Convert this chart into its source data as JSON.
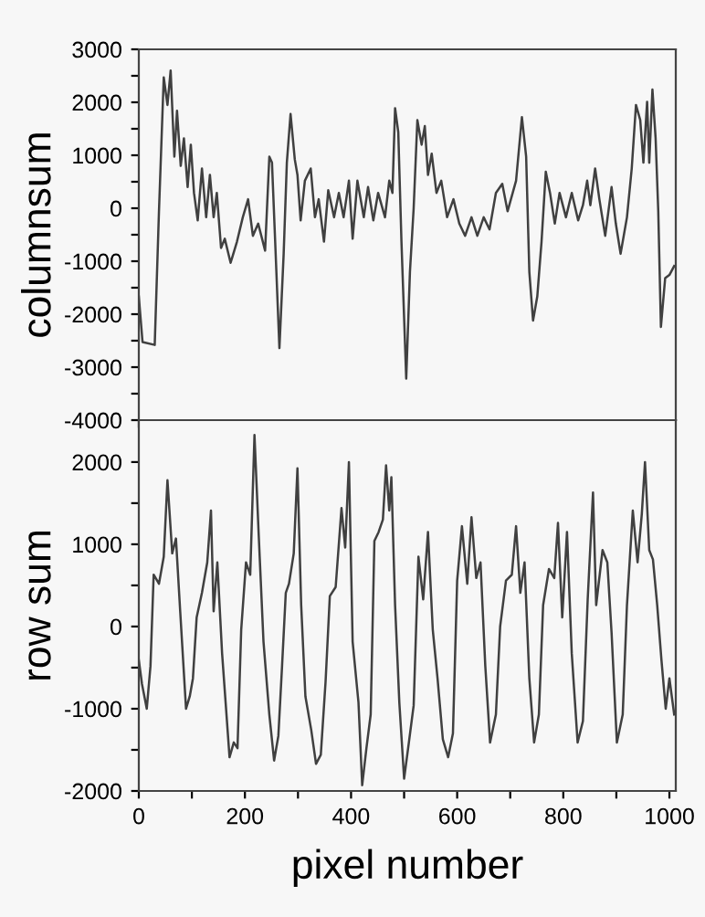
{
  "chart_data": [
    {
      "type": "line",
      "ylabel": "columnsum",
      "xlim": [
        0,
        1012
      ],
      "ylim": [
        -4000,
        3000
      ],
      "xticks": [
        {
          "value": 0,
          "label": null
        },
        {
          "value": 100,
          "label": null
        },
        {
          "value": 200,
          "label": null
        },
        {
          "value": 300,
          "label": null
        },
        {
          "value": 400,
          "label": null
        },
        {
          "value": 500,
          "label": null
        },
        {
          "value": 600,
          "label": null
        },
        {
          "value": 700,
          "label": null
        },
        {
          "value": 800,
          "label": null
        },
        {
          "value": 900,
          "label": null
        },
        {
          "value": 1000,
          "label": null
        }
      ],
      "yticks": [
        -4000,
        {
          "value": -3500,
          "label": null
        },
        -3000,
        {
          "value": -2500,
          "label": null
        },
        -2000,
        {
          "value": -1500,
          "label": null
        },
        -1000,
        {
          "value": -500,
          "label": null
        },
        0,
        {
          "value": 500,
          "label": null
        },
        1000,
        {
          "value": 1500,
          "label": null
        },
        2000,
        {
          "value": 2500,
          "label": null
        },
        3000
      ],
      "tick_labels": "y",
      "grid": false,
      "legend": false,
      "x": [
        0,
        7,
        30,
        38,
        47,
        54,
        60,
        67,
        72,
        79,
        85,
        92,
        98,
        104,
        111,
        119,
        127,
        134,
        141,
        147,
        155,
        162,
        173,
        185,
        196,
        206,
        215,
        225,
        238,
        246,
        251,
        257,
        265,
        273,
        279,
        286,
        294,
        299,
        305,
        313,
        324,
        332,
        339,
        349,
        357,
        368,
        377,
        386,
        396,
        403,
        412,
        424,
        432,
        442,
        451,
        464,
        472,
        478,
        483,
        489,
        495,
        504,
        511,
        518,
        525,
        533,
        539,
        545,
        552,
        561,
        570,
        581,
        593,
        604,
        615,
        627,
        638,
        650,
        661,
        673,
        685,
        695,
        711,
        722,
        730,
        736,
        743,
        751,
        759,
        767,
        775,
        784,
        793,
        805,
        816,
        828,
        837,
        845,
        851,
        860,
        868,
        879,
        891,
        899,
        908,
        920,
        929,
        937,
        945,
        951,
        958,
        962,
        968,
        974,
        979,
        984,
        992,
        1000,
        1009
      ],
      "series": [
        {
          "color": "#404040",
          "values": [
            -1665,
            -2525,
            -2580,
            -57,
            2470,
            1950,
            2600,
            975,
            1840,
            800,
            1320,
            400,
            1200,
            290,
            -230,
            750,
            -170,
            630,
            -170,
            290,
            -750,
            -575,
            -1030,
            -630,
            -170,
            170,
            -520,
            -290,
            -800,
            975,
            860,
            -630,
            -2640,
            -860,
            860,
            1780,
            920,
            630,
            -230,
            520,
            750,
            -170,
            170,
            -630,
            340,
            -170,
            290,
            -170,
            520,
            -575,
            520,
            -170,
            400,
            -230,
            290,
            -170,
            520,
            290,
            1890,
            1435,
            -630,
            -3215,
            -1200,
            0,
            1665,
            1200,
            1550,
            630,
            1030,
            290,
            520,
            -170,
            170,
            -290,
            -520,
            -170,
            -520,
            -170,
            -400,
            290,
            460,
            -57,
            520,
            1720,
            975,
            -1200,
            -2120,
            -1665,
            -630,
            690,
            290,
            -290,
            290,
            -170,
            290,
            -230,
            57,
            520,
            57,
            750,
            170,
            -520,
            400,
            -290,
            -860,
            -170,
            750,
            1950,
            1665,
            860,
            2010,
            860,
            2240,
            1320,
            -57,
            -2240,
            -1320,
            -1260,
            -1090
          ]
        }
      ]
    },
    {
      "type": "line",
      "xlabel": "pixel number",
      "ylabel": "row sum",
      "xlim": [
        0,
        1012
      ],
      "ylim": [
        -2000,
        2510
      ],
      "xticks": [
        0,
        {
          "value": 100,
          "label": null
        },
        200,
        {
          "value": 300,
          "label": null
        },
        400,
        {
          "value": 500,
          "label": null
        },
        600,
        {
          "value": 700,
          "label": null
        },
        800,
        {
          "value": 900,
          "label": null
        },
        1000
      ],
      "yticks": [
        -2000,
        {
          "value": -1500,
          "label": null
        },
        -1000,
        {
          "value": -500,
          "label": null
        },
        0,
        {
          "value": 500,
          "label": null
        },
        1000,
        {
          "value": 1500,
          "label": null
        },
        2000
      ],
      "grid": false,
      "legend": false,
      "x": [
        0,
        6,
        15,
        22,
        28,
        38,
        47,
        54,
        63,
        70,
        78,
        89,
        96,
        102,
        109,
        119,
        129,
        136,
        141,
        148,
        157,
        171,
        179,
        186,
        193,
        202,
        210,
        218,
        226,
        235,
        246,
        255,
        263,
        270,
        277,
        283,
        292,
        299,
        306,
        314,
        325,
        334,
        343,
        352,
        360,
        371,
        382,
        389,
        396,
        403,
        414,
        421,
        429,
        437,
        444,
        452,
        460,
        466,
        472,
        476,
        483,
        491,
        500,
        509,
        518,
        527,
        536,
        545,
        554,
        563,
        573,
        583,
        592,
        600,
        609,
        619,
        627,
        636,
        644,
        653,
        662,
        673,
        681,
        692,
        703,
        711,
        719,
        727,
        736,
        745,
        754,
        762,
        773,
        783,
        790,
        798,
        807,
        816,
        827,
        837,
        846,
        856,
        862,
        874,
        883,
        891,
        901,
        912,
        920,
        931,
        940,
        948,
        954,
        962,
        969,
        977,
        985,
        993,
        1000,
        1009
      ],
      "series": [
        {
          "color": "#404040",
          "values": [
            -407,
            -700,
            -1000,
            -480,
            630,
            520,
            850,
            1780,
            890,
            1070,
            185,
            -1000,
            -850,
            -630,
            110,
            410,
            780,
            1410,
            185,
            780,
            -330,
            -1590,
            -1410,
            -1480,
            -37,
            780,
            630,
            2330,
            1110,
            -185,
            -1070,
            -1630,
            -1330,
            -480,
            410,
            520,
            890,
            1925,
            260,
            -850,
            -1260,
            -1670,
            -1560,
            -670,
            370,
            480,
            1440,
            960,
            2000,
            -185,
            -925,
            -1930,
            -1480,
            -1070,
            1040,
            1150,
            1300,
            1960,
            1410,
            1815,
            260,
            -925,
            -1850,
            -1410,
            -960,
            850,
            330,
            1150,
            -37,
            -630,
            -1370,
            -1590,
            -1300,
            560,
            1220,
            520,
            1330,
            590,
            780,
            -480,
            -1410,
            -1070,
            0,
            560,
            630,
            1220,
            410,
            780,
            -630,
            -1410,
            -1070,
            260,
            700,
            590,
            1260,
            110,
            1150,
            -330,
            -1410,
            -1150,
            330,
            1630,
            260,
            930,
            780,
            -75,
            -1410,
            -1070,
            260,
            1410,
            780,
            1370,
            2000,
            930,
            815,
            260,
            -407,
            -1000,
            -630,
            -1070
          ]
        }
      ]
    }
  ]
}
